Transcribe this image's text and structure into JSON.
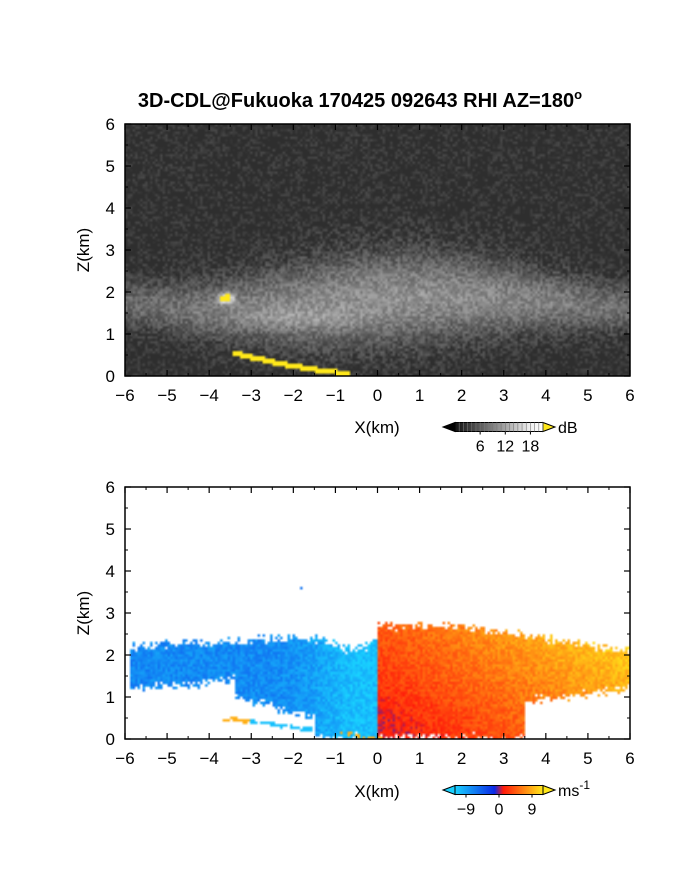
{
  "figure": {
    "title": "3D-CDL@Fukuoka 170425 092643 RHI AZ=180",
    "title_sup": "o"
  },
  "chart_data": [
    {
      "type": "heatmap",
      "quantity": "backscatter intensity",
      "xlabel": "X(km)",
      "ylabel": "Z(km)",
      "xlim": [
        -6,
        6
      ],
      "ylim": [
        0,
        6
      ],
      "xticks": [
        "-6",
        "-5",
        "-4",
        "-3",
        "-2",
        "-1",
        "0",
        "1",
        "2",
        "3",
        "4",
        "5",
        "6"
      ],
      "yticks": [
        "0",
        "1",
        "2",
        "3",
        "4",
        "5",
        "6"
      ],
      "grid": false,
      "colormap": "grayscale, saturating to yellow",
      "background_color": "#2e2e2e",
      "colorbar": {
        "label": "dB",
        "ticks": [
          "6",
          "12",
          "18"
        ],
        "range": [
          0,
          21
        ]
      },
      "features": [
        {
          "name": "aerosol layer",
          "x_range": [
            -6,
            6
          ],
          "z_top": 2.5,
          "z_base": 1.0,
          "intensity_dB": 11
        },
        {
          "name": "bright spot",
          "x": -3.6,
          "z": 1.85,
          "intensity_dB": 21
        },
        {
          "name": "ground return",
          "points": [
            [
              -3.4,
              0.5
            ],
            [
              -2.5,
              0.3
            ],
            [
              -1.5,
              0.12
            ],
            [
              -0.7,
              0.02
            ]
          ],
          "intensity_dB": 21
        }
      ]
    },
    {
      "type": "heatmap",
      "quantity": "radial velocity",
      "xlabel": "X(km)",
      "ylabel": "Z(km)",
      "xlim": [
        -6,
        6
      ],
      "ylim": [
        0,
        6
      ],
      "xticks": [
        "-6",
        "-5",
        "-4",
        "-3",
        "-2",
        "-1",
        "0",
        "1",
        "2",
        "3",
        "4",
        "5",
        "6"
      ],
      "yticks": [
        "0",
        "1",
        "2",
        "3",
        "4",
        "5",
        "6"
      ],
      "grid": false,
      "colormap": "cyan-blue-red-yellow diverging",
      "colors": [
        "#19d1ff",
        "#0a28e6",
        "#ff1a0a",
        "#ffe81a"
      ],
      "colorbar": {
        "label": "ms",
        "label_sup": "-1",
        "ticks": [
          "-9",
          "0",
          "9"
        ],
        "range": [
          -12,
          12
        ]
      },
      "features": [
        {
          "name": "approaching side",
          "x_range": [
            -5.9,
            0
          ],
          "z_top": 2.4,
          "velocity_range": [
            -9,
            -1
          ]
        },
        {
          "name": "receding side",
          "x_range": [
            0,
            6
          ],
          "z_top": 2.7,
          "velocity_range": [
            1,
            9
          ]
        },
        {
          "name": "isolated pixel",
          "x": -1.8,
          "z": 3.6,
          "velocity": -6
        }
      ]
    }
  ]
}
